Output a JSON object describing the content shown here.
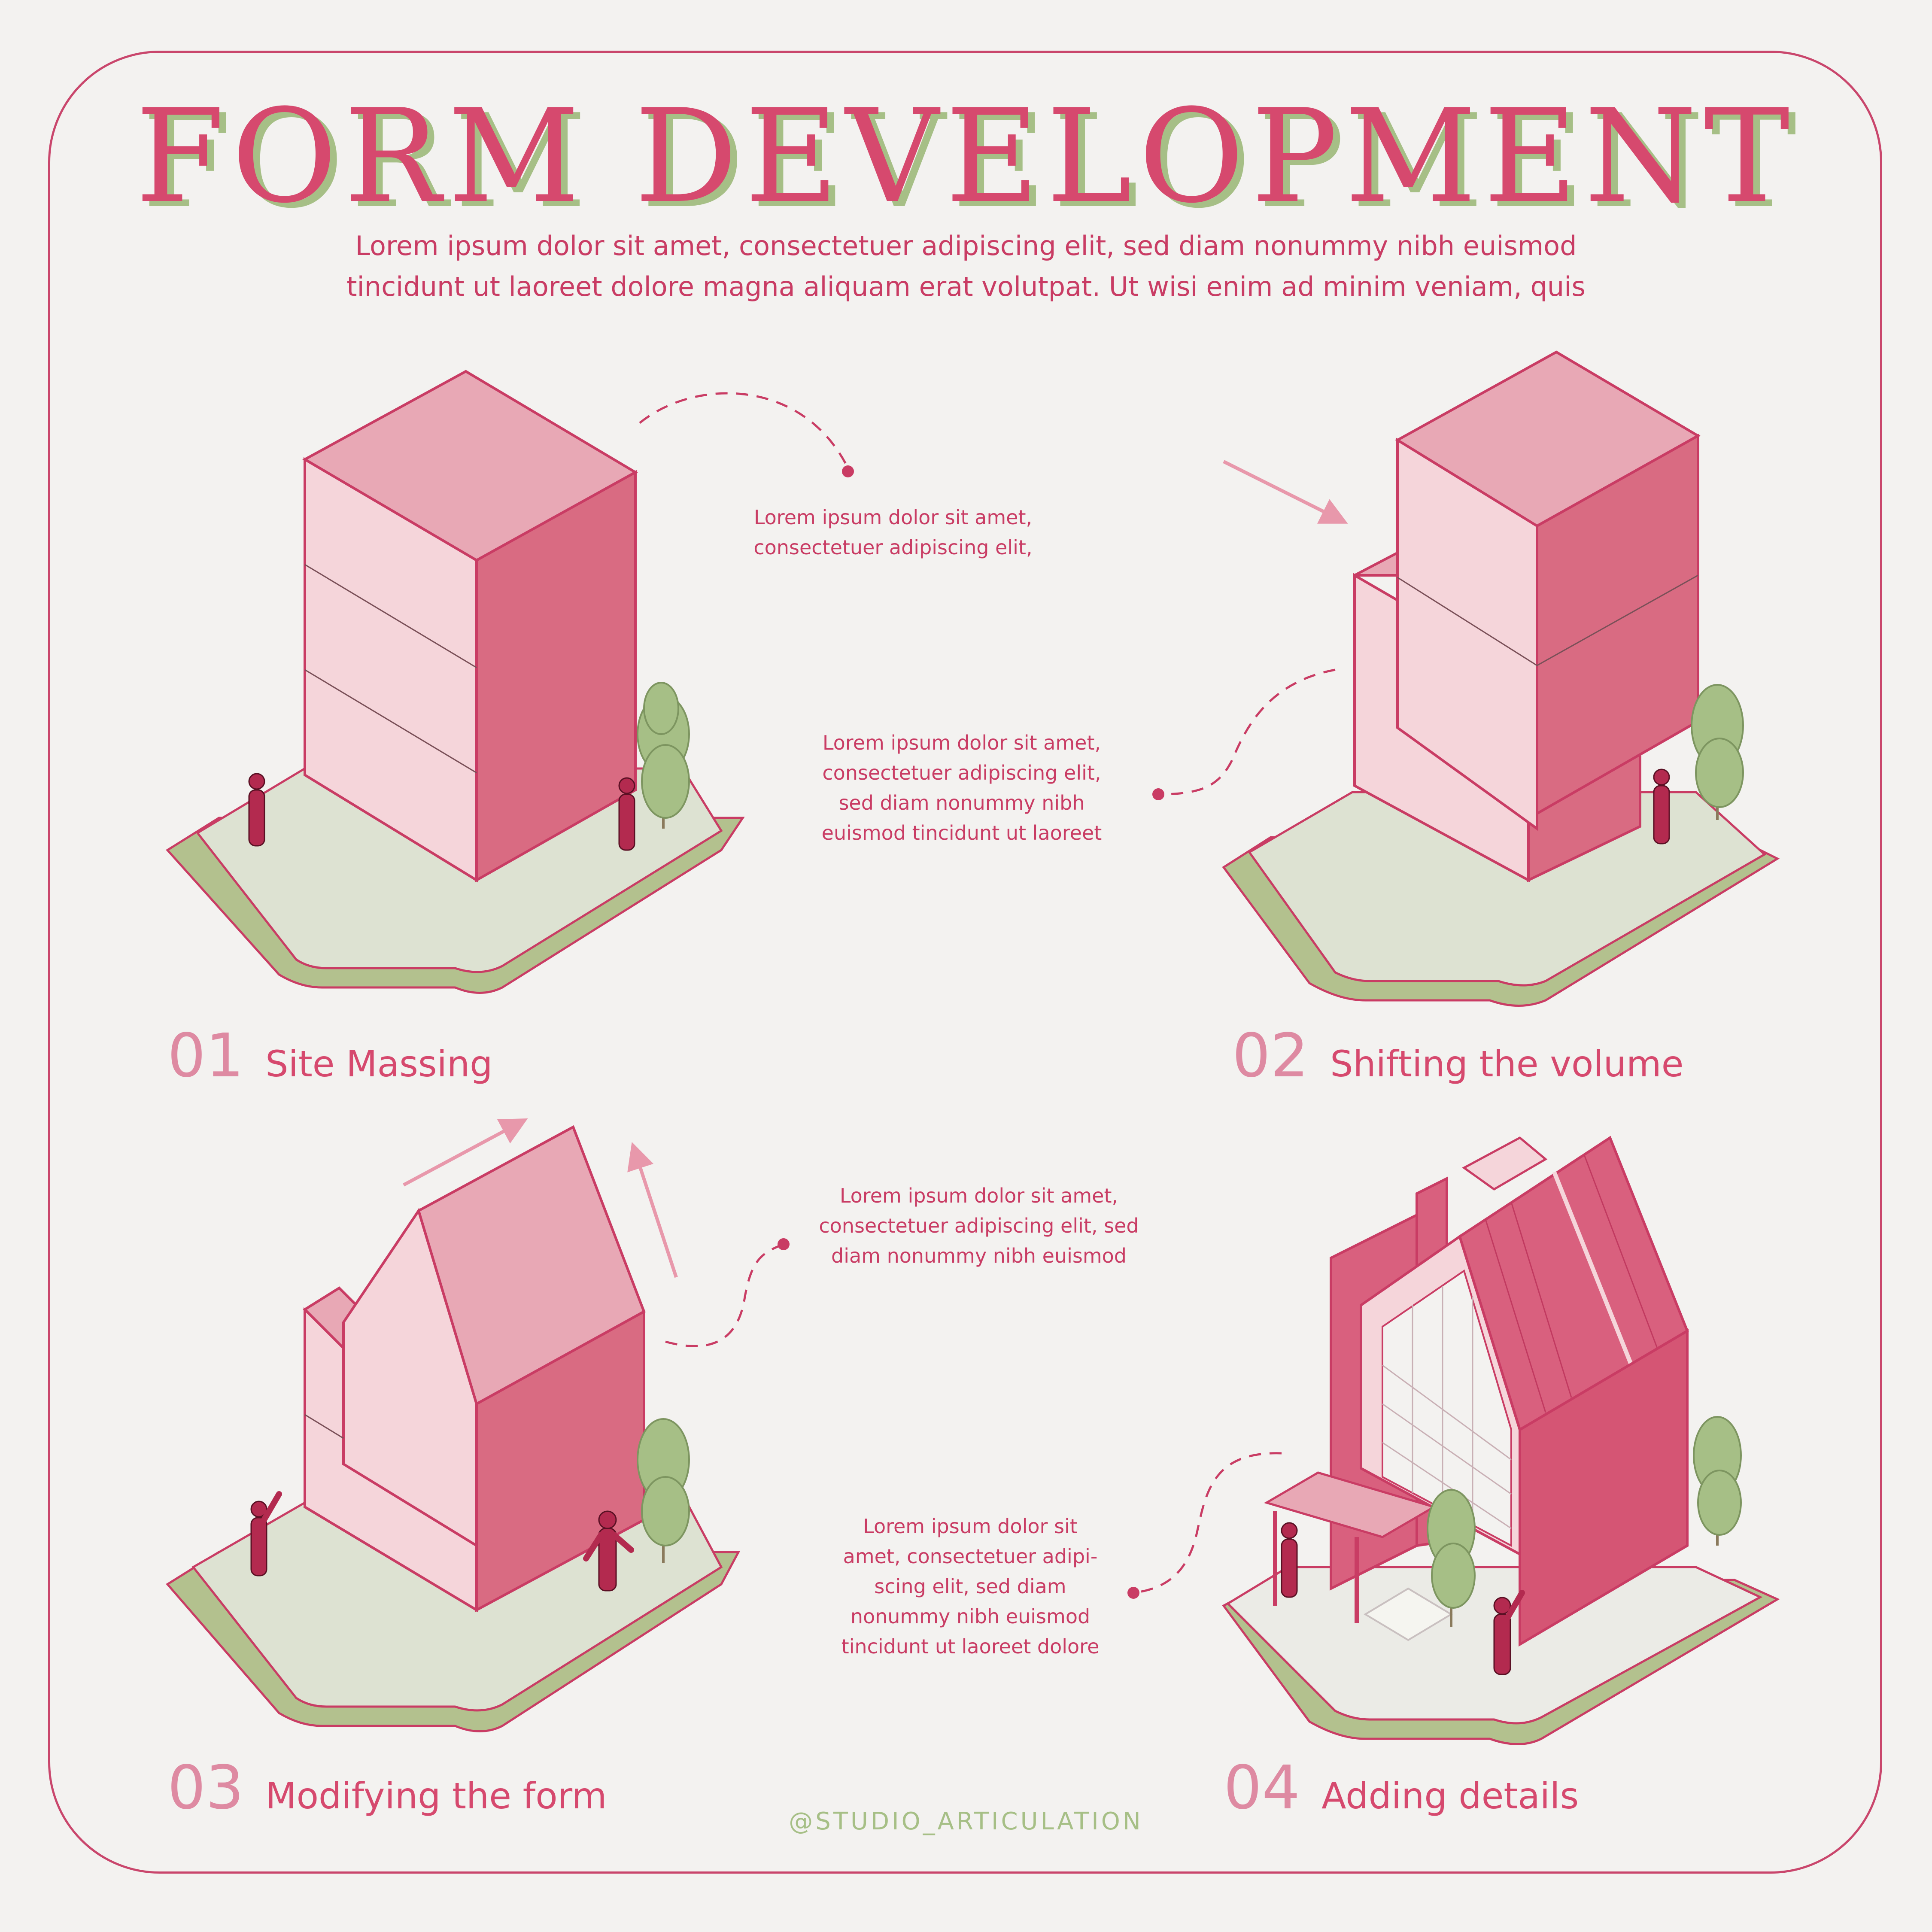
{
  "title": "FORM DEVELOPMENT",
  "subtitle_lines": [
    "Lorem ipsum dolor sit amet, consectetuer adipiscing elit, sed diam nonummy nibh euismod",
    "tincidunt ut laoreet dolore magna aliquam erat volutpat. Ut wisi enim ad minim veniam, quis"
  ],
  "notes": {
    "n1": [
      "Lorem ipsum dolor sit amet,",
      "consectetuer adipiscing elit,"
    ],
    "n2": [
      "Lorem ipsum dolor sit amet,",
      "consectetuer adipiscing elit,",
      "sed diam nonummy nibh",
      "euismod tincidunt ut laoreet"
    ],
    "n3": [
      "Lorem ipsum dolor sit amet,",
      "consectetuer adipiscing elit, sed",
      "diam nonummy nibh euismod"
    ],
    "n4": [
      "Lorem ipsum dolor sit",
      "amet, consectetuer adipi-",
      "scing elit, sed diam",
      "nonummy nibh euismod",
      "tincidunt ut laoreet dolore"
    ]
  },
  "steps": [
    {
      "num": "01",
      "label": "Site Massing"
    },
    {
      "num": "02",
      "label": "Shifting the volume"
    },
    {
      "num": "03",
      "label": "Modifying the form"
    },
    {
      "num": "04",
      "label": "Adding details"
    }
  ],
  "credit": "@STUDIO_ARTICULATION",
  "colors": {
    "accent": "#c93c64",
    "pink_dark": "#d96b82",
    "pink_mid": "#e8a8b5",
    "pink_light": "#f5d5da",
    "green": "#b3c18e",
    "green_light": "#dde2d2",
    "tree": "#a6bf86",
    "background": "#f3f2f0"
  }
}
